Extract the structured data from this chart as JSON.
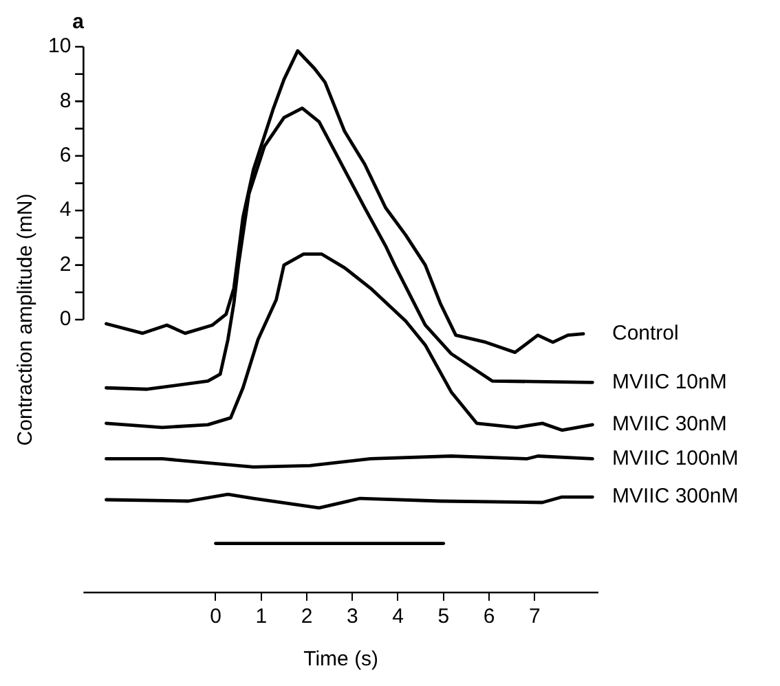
{
  "chart_data": {
    "type": "line",
    "xlabel": "Time (s)",
    "ylabel": "Contraction amplitude (mN)",
    "annotations": [
      "a"
    ],
    "xlim": [
      -2.9,
      8.4
    ],
    "ylim": [
      -10,
      10
    ],
    "xticks": [
      0,
      1,
      2,
      3,
      4,
      5,
      6,
      7
    ],
    "yticks": [
      0,
      {
        "value": 1,
        "label": null
      },
      2,
      {
        "value": 3,
        "label": null
      },
      4,
      {
        "value": 5,
        "label": null
      },
      6,
      {
        "value": 7,
        "label": null
      },
      8,
      {
        "value": 9,
        "label": null
      },
      10
    ],
    "grid": false,
    "legend": false,
    "marker": "none",
    "series": [
      {
        "name": "Control",
        "color": "#000000",
        "x": [
          -2.4,
          -1.6,
          -1.07,
          -0.67,
          -0.07,
          0.23,
          0.4,
          0.6,
          0.83,
          1.27,
          1.5,
          1.8,
          2.17,
          2.4,
          2.83,
          3.27,
          3.73,
          4.17,
          4.6,
          4.93,
          5.27,
          5.93,
          6.57,
          7.07,
          7.4,
          7.73,
          8.07
        ],
        "values": [
          -0.15,
          -0.5,
          -0.2,
          -0.5,
          -0.2,
          0.2,
          1.15,
          3.75,
          5.5,
          7.75,
          8.8,
          9.85,
          9.2,
          8.7,
          6.9,
          5.7,
          4.1,
          3.1,
          2.0,
          0.6,
          -0.57,
          -0.83,
          -1.2,
          -0.57,
          -0.83,
          -0.57,
          -0.52
        ]
      },
      {
        "name": "MVIIC 10nM",
        "color": "#000000",
        "x": [
          -2.4,
          -1.5,
          -0.17,
          0.1,
          0.27,
          0.4,
          0.5,
          0.73,
          1.07,
          1.5,
          1.9,
          2.27,
          2.73,
          3.27,
          3.73,
          3.93,
          4.6,
          5.17,
          6.07,
          8.27
        ],
        "values": [
          -2.5,
          -2.55,
          -2.25,
          -2.0,
          -0.73,
          0.6,
          2.0,
          4.6,
          6.35,
          7.4,
          7.75,
          7.25,
          5.8,
          4.1,
          2.7,
          2.0,
          -0.2,
          -1.25,
          -2.25,
          -2.3
        ]
      },
      {
        "name": "MVIIC 30nM",
        "color": "#000000",
        "x": [
          -2.4,
          -1.17,
          -0.17,
          0.33,
          0.6,
          0.93,
          1.33,
          1.5,
          1.93,
          2.33,
          2.83,
          3.4,
          4.17,
          4.6,
          5.17,
          5.73,
          6.6,
          7.17,
          7.6,
          8.27
        ],
        "values": [
          -3.8,
          -3.95,
          -3.85,
          -3.6,
          -2.5,
          -0.73,
          0.73,
          2.0,
          2.4,
          2.4,
          1.9,
          1.15,
          -0.05,
          -0.93,
          -2.65,
          -3.8,
          -3.95,
          -3.8,
          -4.05,
          -3.85
        ]
      },
      {
        "name": "MVIIC 100nM",
        "color": "#000000",
        "x": [
          -2.4,
          -1.17,
          0.83,
          2.07,
          3.4,
          5.17,
          6.83,
          7.07,
          8.27
        ],
        "values": [
          -5.1,
          -5.1,
          -5.4,
          -5.35,
          -5.1,
          -5.0,
          -5.1,
          -5.0,
          -5.1
        ]
      },
      {
        "name": "MVIIC 300nM",
        "color": "#000000",
        "x": [
          -2.4,
          -0.6,
          0.27,
          0.83,
          2.27,
          3.17,
          4.93,
          7.17,
          7.6,
          8.27
        ],
        "values": [
          -6.6,
          -6.65,
          -6.4,
          -6.55,
          -6.9,
          -6.55,
          -6.65,
          -6.7,
          -6.5,
          -6.5
        ]
      },
      {
        "color": "#000000",
        "x": [
          0,
          5
        ],
        "values": [
          -8.2,
          -8.2
        ]
      }
    ]
  }
}
